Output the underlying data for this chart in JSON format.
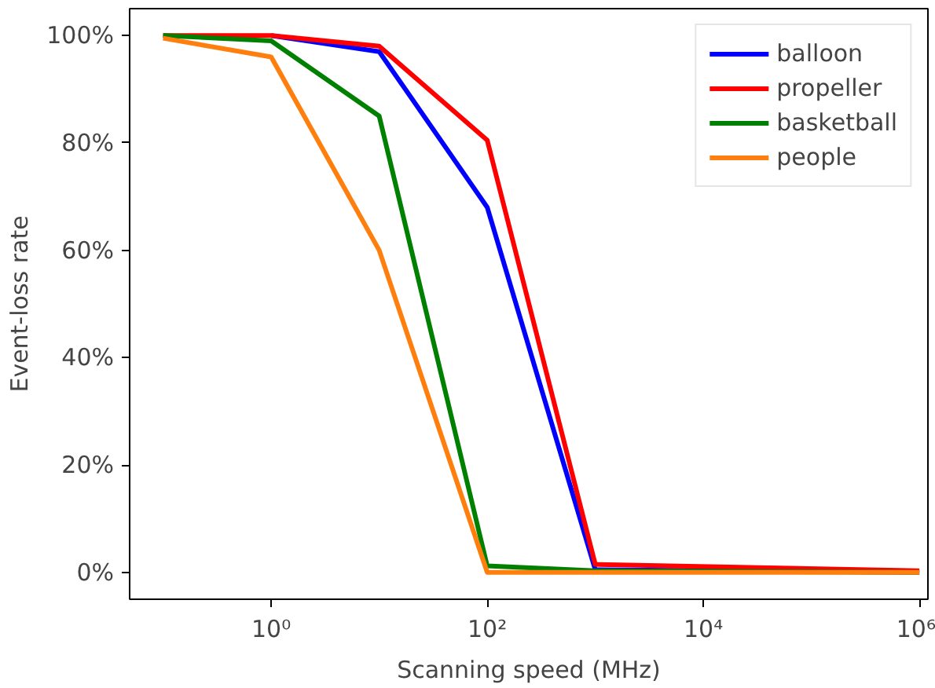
{
  "chart_data": {
    "type": "line",
    "xlabel": "Scanning speed (MHz)",
    "ylabel": "Event-loss rate",
    "x": [
      0.1,
      1,
      10,
      100,
      1000,
      1000000
    ],
    "series": [
      {
        "name": "balloon",
        "color": "#0000ff",
        "values": [
          null,
          100,
          97,
          68,
          0.5,
          0
        ]
      },
      {
        "name": "propeller",
        "color": "#ff0000",
        "values": [
          100,
          100,
          98,
          80.5,
          1.5,
          0.3
        ]
      },
      {
        "name": "basketball",
        "color": "#008000",
        "values": [
          100,
          99,
          85,
          1.2,
          0.3,
          0
        ]
      },
      {
        "name": "people",
        "color": "#ff7f0e",
        "values": [
          99.5,
          96,
          60,
          0,
          0,
          0
        ]
      }
    ],
    "log": "x",
    "xlim": [
      0.049,
      1200000
    ],
    "ylim": [
      -5,
      105
    ],
    "xticks": [
      {
        "value": 1,
        "label": "10⁰"
      },
      {
        "value": 100,
        "label": "10²"
      },
      {
        "value": 10000,
        "label": "10⁴"
      },
      {
        "value": 1000000,
        "label": "10⁶"
      }
    ],
    "yticks": [
      {
        "value": 0,
        "label": "0%"
      },
      {
        "value": 20,
        "label": "20%"
      },
      {
        "value": 40,
        "label": "40%"
      },
      {
        "value": 60,
        "label": "60%"
      },
      {
        "value": 80,
        "label": "80%"
      },
      {
        "value": 100,
        "label": "100%"
      }
    ],
    "grid": false,
    "legend": "top right",
    "marker": "none",
    "line_style": "solid"
  }
}
